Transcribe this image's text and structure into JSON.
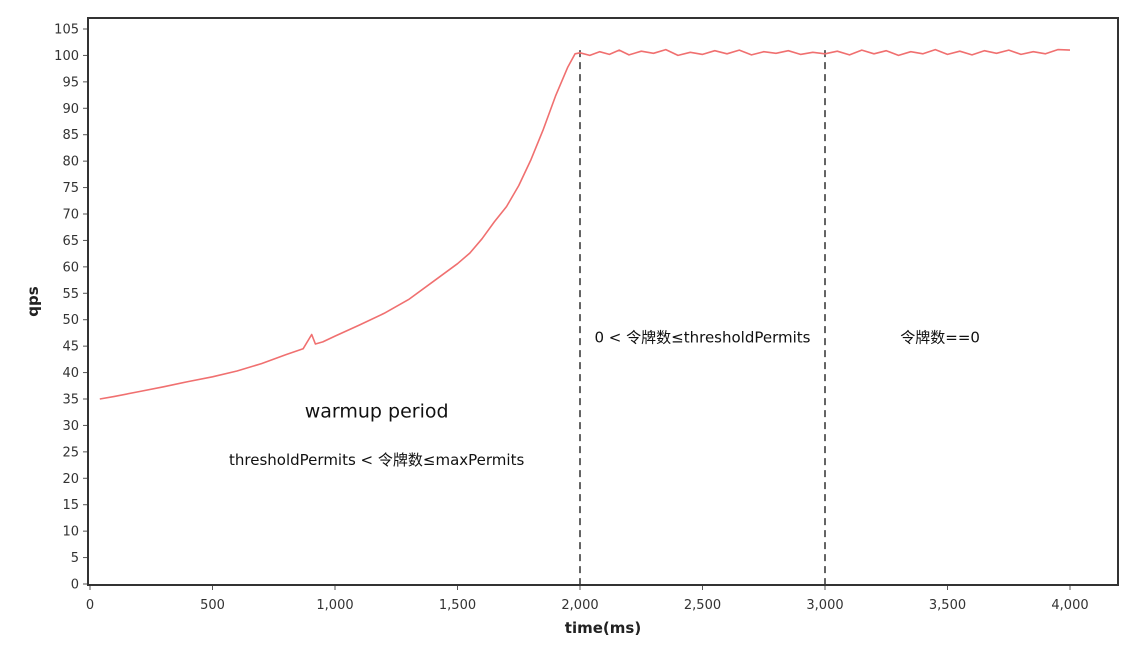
{
  "chart_data": {
    "type": "line",
    "xlabel": "time(ms)",
    "ylabel": "qps",
    "xlim": [
      0,
      4200
    ],
    "ylim": [
      0,
      105
    ],
    "x_ticks": [
      0,
      500,
      1000,
      1500,
      2000,
      2500,
      3000,
      3500,
      4000
    ],
    "x_tick_labels": [
      "0",
      "500",
      "1,000",
      "1,500",
      "2,000",
      "2,500",
      "3,000",
      "3,500",
      "4,000"
    ],
    "y_ticks": [
      0,
      5,
      10,
      15,
      20,
      25,
      30,
      35,
      40,
      45,
      50,
      55,
      60,
      65,
      70,
      75,
      80,
      85,
      90,
      95,
      100,
      105
    ],
    "grid": false,
    "line_color": "#f07070",
    "series": [
      {
        "points": [
          [
            40,
            35.0
          ],
          [
            100,
            35.5
          ],
          [
            200,
            36.4
          ],
          [
            300,
            37.3
          ],
          [
            400,
            38.3
          ],
          [
            500,
            39.2
          ],
          [
            600,
            40.3
          ],
          [
            700,
            41.7
          ],
          [
            800,
            43.4
          ],
          [
            870,
            44.5
          ],
          [
            905,
            47.2
          ],
          [
            920,
            45.4
          ],
          [
            950,
            45.8
          ],
          [
            1000,
            46.9
          ],
          [
            1100,
            49.0
          ],
          [
            1200,
            51.2
          ],
          [
            1300,
            53.8
          ],
          [
            1400,
            57.2
          ],
          [
            1500,
            60.6
          ],
          [
            1550,
            62.6
          ],
          [
            1600,
            65.3
          ],
          [
            1650,
            68.5
          ],
          [
            1700,
            71.4
          ],
          [
            1750,
            75.4
          ],
          [
            1800,
            80.3
          ],
          [
            1850,
            86.0
          ],
          [
            1900,
            92.3
          ],
          [
            1950,
            97.8
          ],
          [
            1980,
            100.3
          ],
          [
            2000,
            100.5
          ],
          [
            2040,
            100.0
          ],
          [
            2080,
            100.7
          ],
          [
            2120,
            100.2
          ],
          [
            2160,
            101.0
          ],
          [
            2200,
            100.1
          ],
          [
            2250,
            100.8
          ],
          [
            2300,
            100.4
          ],
          [
            2350,
            101.1
          ],
          [
            2400,
            100.0
          ],
          [
            2450,
            100.6
          ],
          [
            2500,
            100.2
          ],
          [
            2550,
            100.9
          ],
          [
            2600,
            100.3
          ],
          [
            2650,
            101.0
          ],
          [
            2700,
            100.1
          ],
          [
            2750,
            100.7
          ],
          [
            2800,
            100.4
          ],
          [
            2850,
            100.9
          ],
          [
            2900,
            100.2
          ],
          [
            2950,
            100.6
          ],
          [
            3000,
            100.3
          ],
          [
            3050,
            100.8
          ],
          [
            3100,
            100.1
          ],
          [
            3150,
            101.0
          ],
          [
            3200,
            100.3
          ],
          [
            3250,
            100.9
          ],
          [
            3300,
            100.0
          ],
          [
            3350,
            100.7
          ],
          [
            3400,
            100.3
          ],
          [
            3450,
            101.1
          ],
          [
            3500,
            100.2
          ],
          [
            3550,
            100.8
          ],
          [
            3600,
            100.1
          ],
          [
            3650,
            100.9
          ],
          [
            3700,
            100.4
          ],
          [
            3750,
            101.0
          ],
          [
            3800,
            100.2
          ],
          [
            3850,
            100.7
          ],
          [
            3900,
            100.3
          ],
          [
            3950,
            101.1
          ],
          [
            4000,
            101.0
          ]
        ]
      }
    ],
    "vertical_markers": [
      2000,
      3000
    ],
    "annotations": [
      {
        "text": "warmup period",
        "x": 1170,
        "y": 31.5,
        "size": "large"
      },
      {
        "text": "thresholdPermits < 令牌数≤maxPermits",
        "x": 1170,
        "y": 22.5,
        "size": "normal"
      },
      {
        "text": "0 < 令牌数≤thresholdPermits",
        "x": 2500,
        "y": 45.7,
        "size": "normal"
      },
      {
        "text": "令牌数==0",
        "x": 3470,
        "y": 45.7,
        "size": "normal"
      }
    ]
  }
}
